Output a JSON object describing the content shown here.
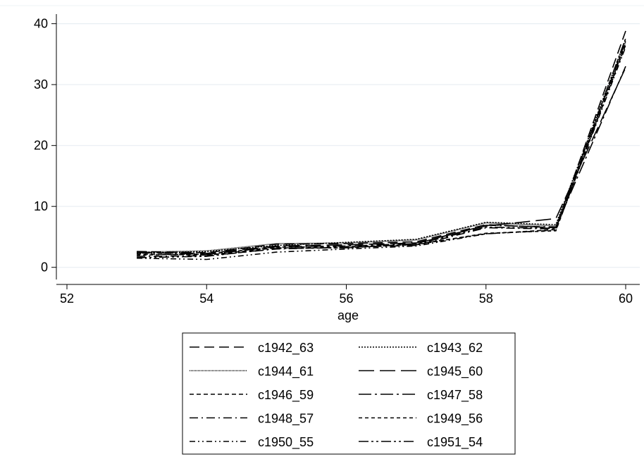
{
  "chart_data": {
    "type": "line",
    "title": "",
    "xlabel": "age",
    "ylabel": "",
    "xlim": [
      52,
      60
    ],
    "ylim": [
      -2,
      41
    ],
    "xticks": [
      52,
      54,
      56,
      58,
      60
    ],
    "yticks": [
      0,
      10,
      20,
      30,
      40
    ],
    "grid": true,
    "legend_position": "bottom",
    "line_color": "#000000",
    "x": [
      53,
      54,
      55,
      56,
      57,
      58,
      59,
      60
    ],
    "series": [
      {
        "name": "c1942_63",
        "dash": "14,7",
        "values": [
          2.6,
          2.4,
          3.8,
          3.9,
          4.2,
          7.0,
          6.5,
          38.8
        ]
      },
      {
        "name": "c1943_62",
        "dash": "2,2",
        "values": [
          2.3,
          2.6,
          3.6,
          4.1,
          4.6,
          7.4,
          7.0,
          37.5
        ]
      },
      {
        "name": "c1944_61",
        "dash": "1,1",
        "values": [
          2.5,
          2.7,
          3.9,
          4.0,
          4.5,
          7.3,
          6.8,
          37.0
        ]
      },
      {
        "name": "c1945_60",
        "dash": "22,8",
        "values": [
          2.4,
          2.3,
          3.5,
          3.7,
          4.0,
          6.8,
          8.0,
          32.8
        ]
      },
      {
        "name": "c1946_59",
        "dash": "6,4",
        "values": [
          2.2,
          2.0,
          3.2,
          3.2,
          3.8,
          5.5,
          6.2,
          36.5
        ]
      },
      {
        "name": "c1947_58",
        "dash": "18,5,3,5",
        "values": [
          2.5,
          2.1,
          3.4,
          3.5,
          3.9,
          6.9,
          6.6,
          33.0
        ]
      },
      {
        "name": "c1948_57",
        "dash": "12,5,2,5",
        "values": [
          1.8,
          1.9,
          3.0,
          3.3,
          3.6,
          6.5,
          6.3,
          37.2
        ]
      },
      {
        "name": "c1949_56",
        "dash": "5,4",
        "values": [
          2.0,
          2.2,
          3.3,
          3.4,
          3.7,
          5.6,
          6.0,
          36.8
        ]
      },
      {
        "name": "c1950_55",
        "dash": "8,4,2,4,2,4",
        "values": [
          1.5,
          1.3,
          2.5,
          3.0,
          3.5,
          5.5,
          6.1,
          36.2
        ]
      },
      {
        "name": "c1951_54",
        "dash": "14,4,3,4,3,4",
        "values": [
          1.6,
          1.8,
          3.1,
          3.2,
          3.8,
          6.6,
          6.4,
          37.6
        ]
      }
    ]
  }
}
